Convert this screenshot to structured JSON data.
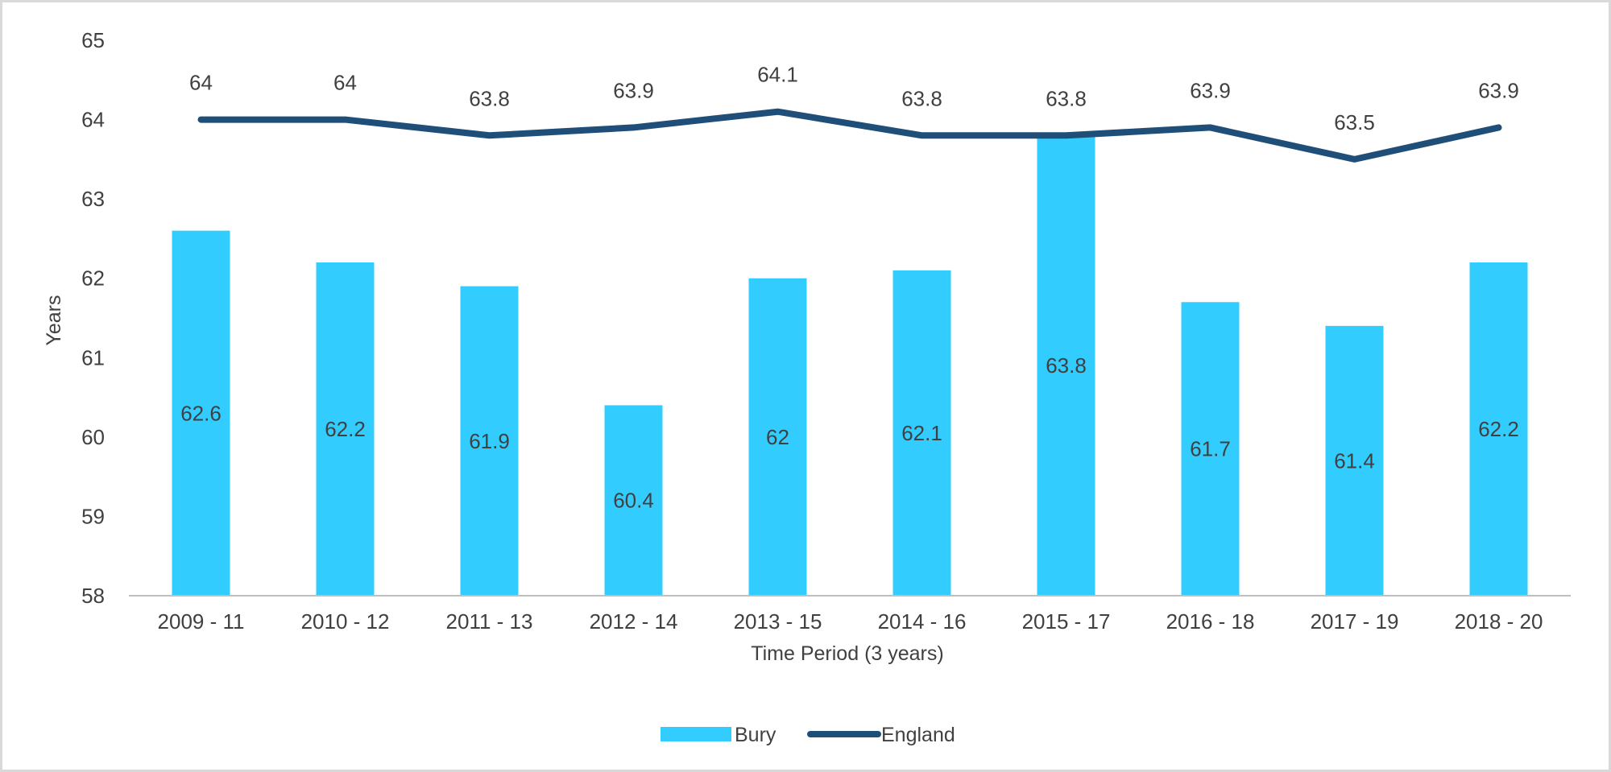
{
  "chart_data": {
    "type": "bar",
    "title": "",
    "xlabel": "Time Period (3 years)",
    "ylabel": "Years",
    "ylim": [
      58,
      65
    ],
    "yticks": [
      58,
      59,
      60,
      61,
      62,
      63,
      64,
      65
    ],
    "grid": false,
    "legend_position": "bottom",
    "categories": [
      "2009 - 11",
      "2010 - 12",
      "2011 - 13",
      "2012 - 14",
      "2013 - 15",
      "2014 - 16",
      "2015 - 17",
      "2016 - 18",
      "2017 - 19",
      "2018 - 20"
    ],
    "series": [
      {
        "name": "Bury",
        "type": "bar",
        "color": "#33ccff",
        "values": [
          62.6,
          62.2,
          61.9,
          60.4,
          62,
          62.1,
          63.8,
          61.7,
          61.4,
          62.2
        ],
        "labels": [
          "62.6",
          "62.2",
          "61.9",
          "60.4",
          "62",
          "62.1",
          "63.8",
          "61.7",
          "61.4",
          "62.2"
        ]
      },
      {
        "name": "England",
        "type": "line",
        "color": "#1f4e79",
        "values": [
          64,
          64,
          63.8,
          63.9,
          64.1,
          63.8,
          63.8,
          63.9,
          63.5,
          63.9
        ],
        "labels": [
          "64",
          "64",
          "63.8",
          "63.9",
          "64.1",
          "63.8",
          "63.8",
          "63.9",
          "63.5",
          "63.9"
        ]
      }
    ]
  }
}
